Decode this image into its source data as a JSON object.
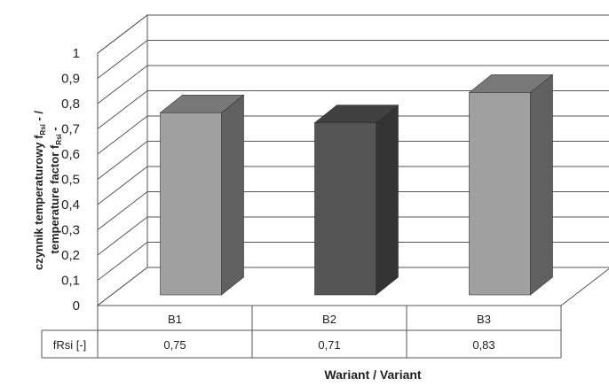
{
  "chart_data": {
    "type": "bar",
    "categories": [
      "B1",
      "B2",
      "B3"
    ],
    "series": [
      {
        "name": "fRsi [-]",
        "values": [
          0.75,
          0.71,
          0.83
        ]
      }
    ],
    "data_labels": [
      "0,75",
      "0,71",
      "0,83"
    ],
    "ylim": [
      0,
      1
    ],
    "yticks": [
      "0",
      "0,1",
      "0,2",
      "0,3",
      "0,4",
      "0,5",
      "0,6",
      "0,7",
      "0,8",
      "0,9",
      "1"
    ],
    "ylabel_line1": "czynnik temperaturowy f",
    "ylabel_line1_sub": "Rsi",
    "ylabel_line1_tail": " - /",
    "ylabel_line2": "temperature factor f",
    "ylabel_line2_sub": "Rsi",
    "ylabel_line2_tail": " -",
    "xlabel": "Wariant / Variant",
    "grid": true,
    "style": "3d-column-with-data-table",
    "bar_colors": [
      "#a0a0a0",
      "#555555",
      "#a0a0a0"
    ]
  }
}
